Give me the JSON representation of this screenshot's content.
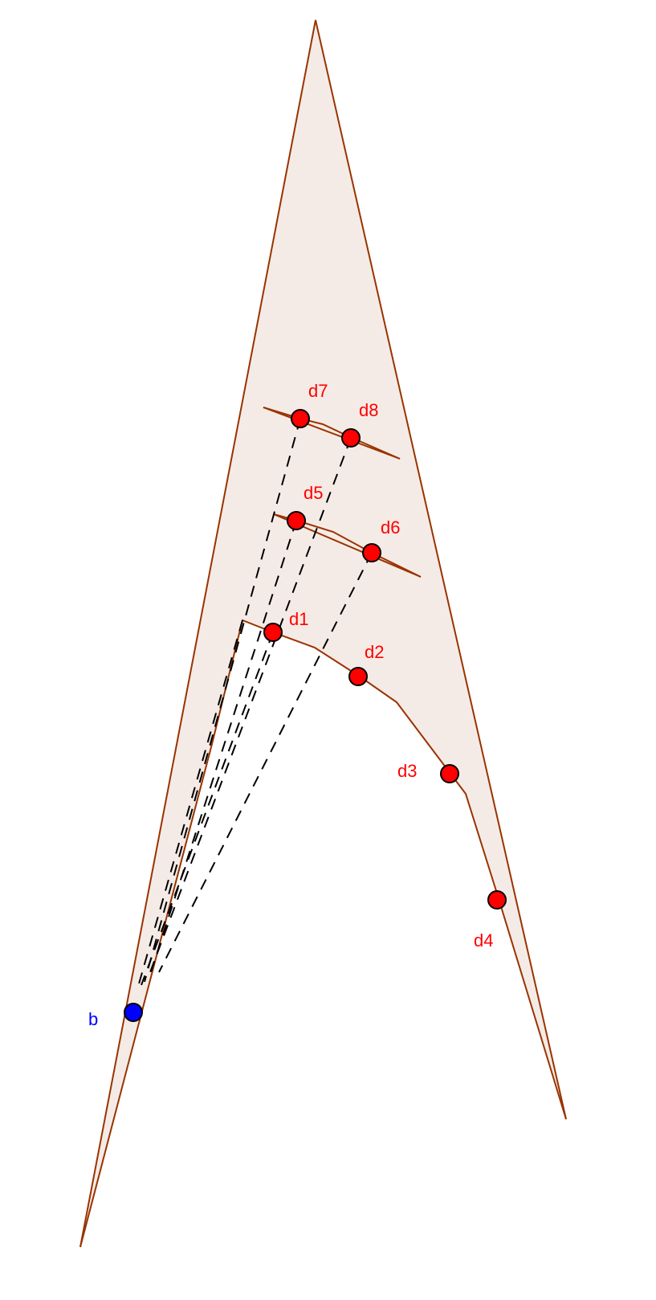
{
  "diagram": {
    "colors": {
      "region_fill": "#f5ebe6",
      "outline": "#993300",
      "dashed": "#000000",
      "red_point": "#ff0000",
      "blue_point": "#0000ff",
      "point_stroke": "#000000"
    },
    "points": {
      "b": {
        "label": "b",
        "color": "blue"
      },
      "d1": {
        "label": "d1",
        "color": "red"
      },
      "d2": {
        "label": "d2",
        "color": "red"
      },
      "d3": {
        "label": "d3",
        "color": "red"
      },
      "d4": {
        "label": "d4",
        "color": "red"
      },
      "d5": {
        "label": "d5",
        "color": "red"
      },
      "d6": {
        "label": "d6",
        "color": "red"
      },
      "d7": {
        "label": "d7",
        "color": "red"
      },
      "d8": {
        "label": "d8",
        "color": "red"
      }
    }
  }
}
